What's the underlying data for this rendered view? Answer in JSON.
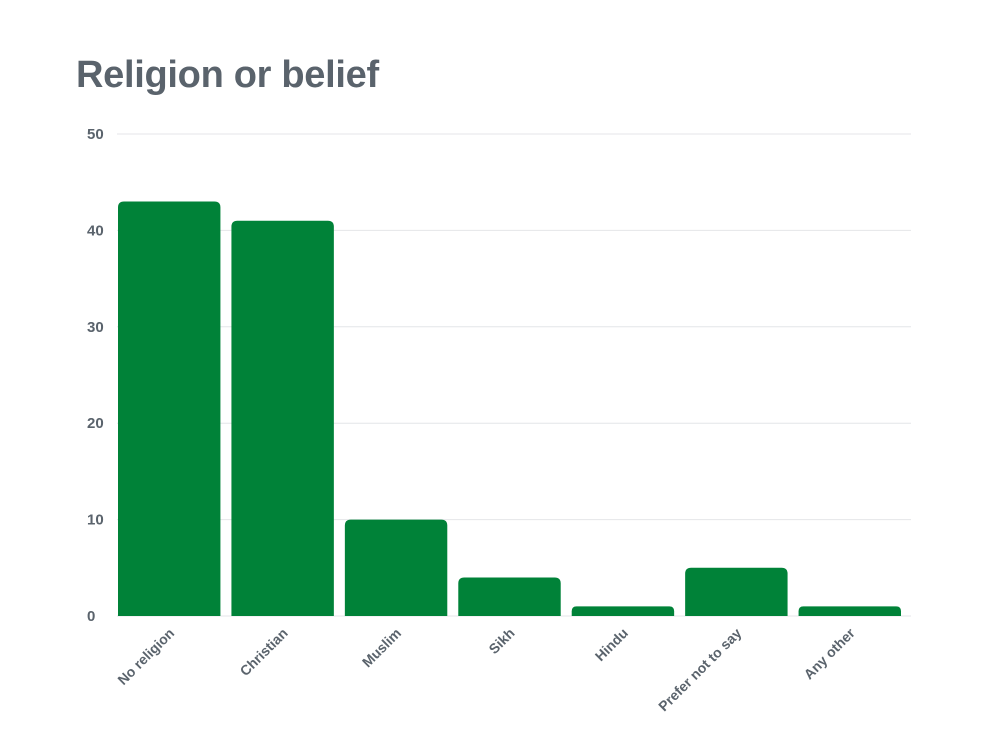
{
  "chart_data": {
    "type": "bar",
    "title": "Religion or belief",
    "xlabel": "",
    "ylabel": "",
    "categories": [
      "No religion",
      "Christian",
      "Muslim",
      "Sikh",
      "Hindu",
      "Prefer not to say",
      "Any other"
    ],
    "values": [
      43,
      41,
      10,
      4,
      1,
      5,
      1
    ],
    "ylim": [
      0,
      50
    ],
    "yticks": [
      "0",
      "10",
      "20",
      "30",
      "40",
      "50"
    ],
    "grid": true,
    "legend": "none",
    "bar_color": "#008238"
  }
}
